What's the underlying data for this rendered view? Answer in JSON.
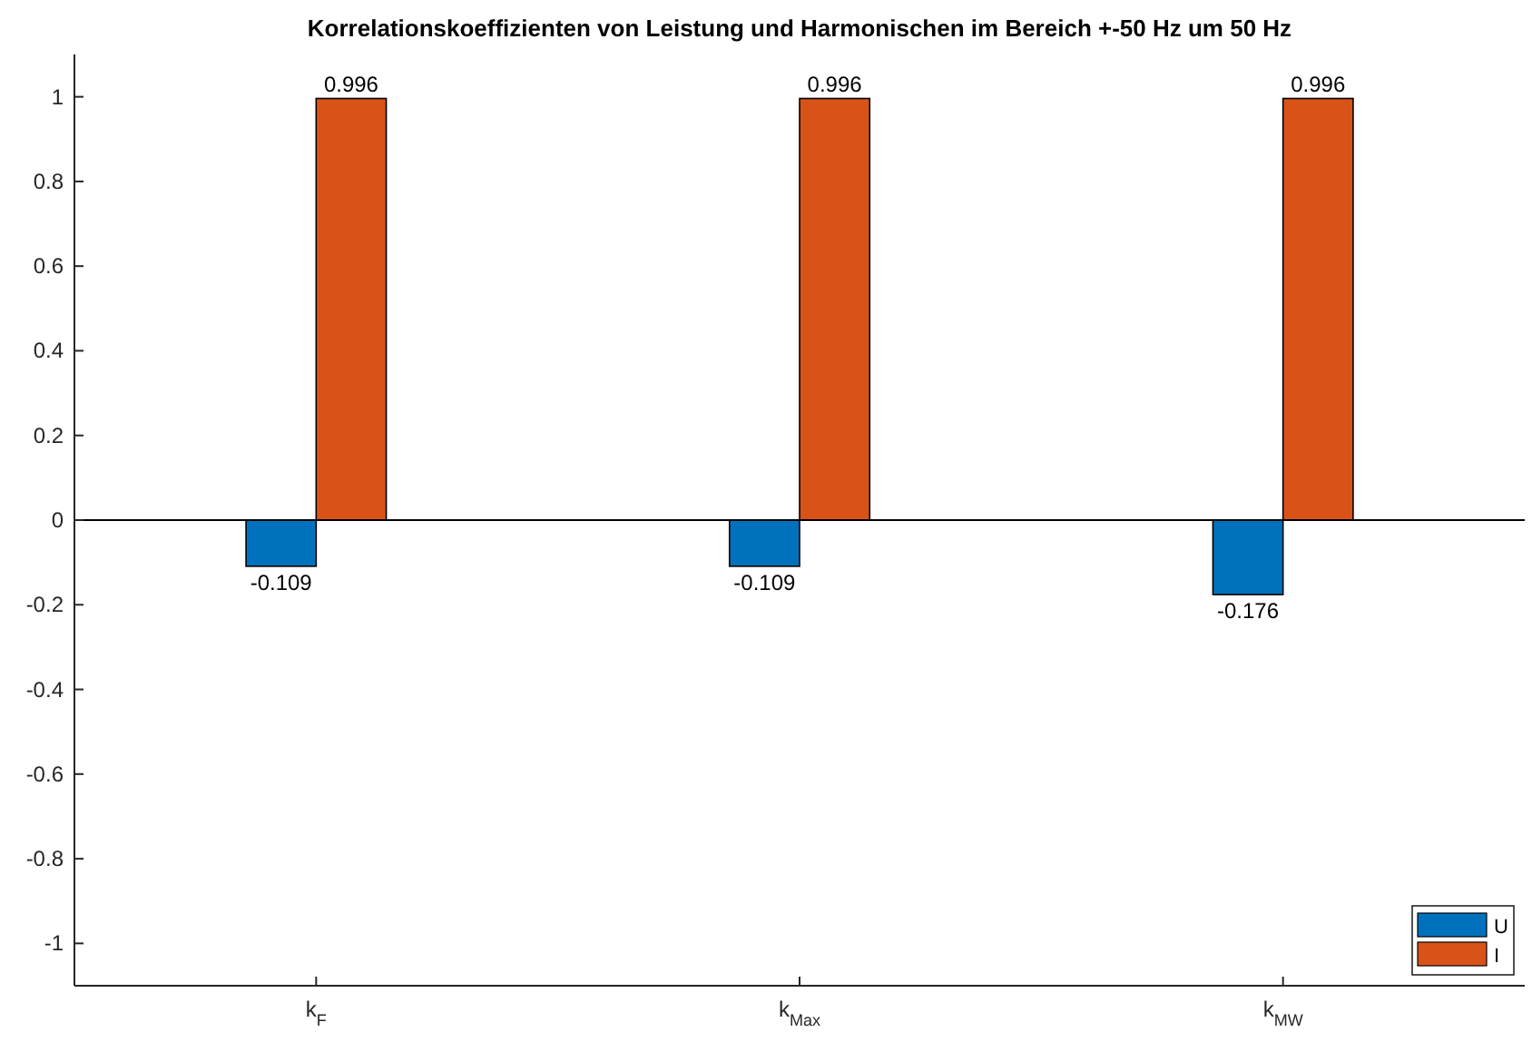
{
  "chart_data": {
    "type": "bar",
    "title": "Korrelationskoeffizienten von Leistung und Harmonischen im Bereich +-50 Hz um 50 Hz",
    "categories": [
      "k$_{F}$",
      "k$_{Max}$",
      "k$_{MW}$"
    ],
    "series": [
      {
        "name": "U",
        "color": "#0072bd",
        "values": [
          -0.109,
          -0.109,
          -0.176
        ]
      },
      {
        "name": "I",
        "color": "#d95319",
        "values": [
          0.996,
          0.996,
          0.996
        ]
      }
    ],
    "ylim": [
      -1.1,
      1.1
    ],
    "yticks": [
      -1,
      -0.8,
      -0.6,
      -0.4,
      -0.2,
      0,
      0.2,
      0.4,
      0.6,
      0.8,
      1
    ],
    "data_labels": true,
    "legend": "bottom right"
  }
}
